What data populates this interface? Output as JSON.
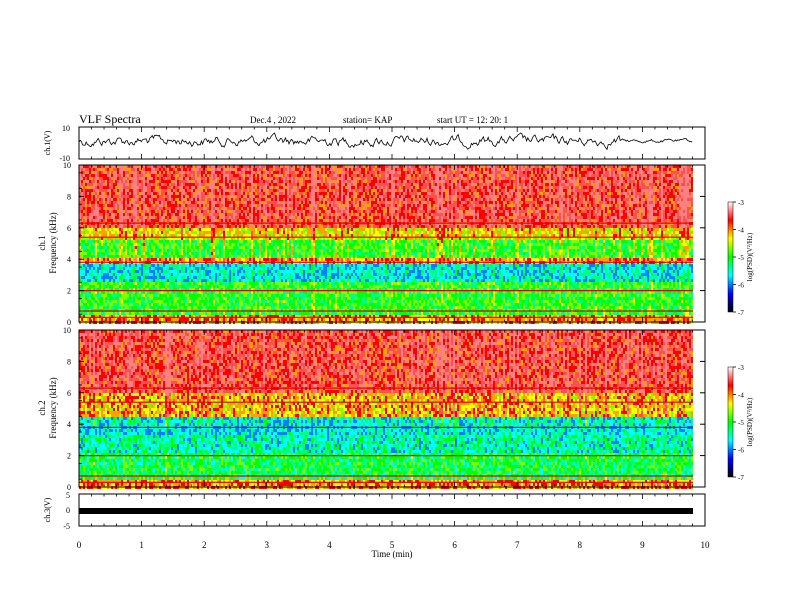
{
  "header": {
    "title": "VLF Spectra",
    "date": "Dec.4 , 2022",
    "station": "station= KAP",
    "start": "start UT = 12: 20: 1"
  },
  "chart_data": [
    {
      "type": "line",
      "name": "waveform-ch1",
      "ylabel": "ch.1(V)",
      "xlim": [
        0,
        10
      ],
      "ylim": [
        -10,
        10
      ],
      "yticks": [
        "10",
        "-10"
      ],
      "series_color": "#000000"
    },
    {
      "type": "heatmap",
      "name": "spectrogram-ch1",
      "ylabel_lines": [
        "ch.1",
        "Frequency (kHz)"
      ],
      "xlim": [
        0,
        10
      ],
      "ylim": [
        0,
        10
      ],
      "yticks": [
        "0",
        "2",
        "4",
        "6",
        "8",
        "10"
      ],
      "colorbar": {
        "label": "log(PSD)(V²/Hz)",
        "range": [
          -7,
          -3
        ],
        "ticks": [
          "-3",
          "-4",
          "-5",
          "-6",
          "-7"
        ],
        "colors": [
          "#000000",
          "#0000ff",
          "#00ffff",
          "#00ff00",
          "#ffff00",
          "#ff0000",
          "#ffffff"
        ]
      }
    },
    {
      "type": "heatmap",
      "name": "spectrogram-ch2",
      "ylabel_lines": [
        "ch.2",
        "Frequency (kHz)"
      ],
      "xlim": [
        0,
        10
      ],
      "ylim": [
        0,
        10
      ],
      "yticks": [
        "0",
        "2",
        "4",
        "6",
        "8",
        "10"
      ],
      "colorbar": {
        "label": "log(PSD)(V²/Hz)",
        "range": [
          -7,
          -3
        ],
        "ticks": [
          "-3",
          "-4",
          "-5",
          "-6",
          "-7"
        ],
        "colors": [
          "#000000",
          "#0000ff",
          "#00ffff",
          "#00ff00",
          "#ffff00",
          "#ff0000",
          "#ffffff"
        ]
      }
    },
    {
      "type": "line",
      "name": "waveform-ch3",
      "ylabel": "ch.3(V)",
      "xlim": [
        0,
        10
      ],
      "ylim": [
        -5,
        5
      ],
      "yticks": [
        "5",
        "0",
        "-5"
      ],
      "series_color": "#000000"
    }
  ],
  "xaxis": {
    "label": "Time (min)",
    "ticks": [
      "0",
      "1",
      "2",
      "3",
      "4",
      "5",
      "6",
      "7",
      "8",
      "9",
      "10"
    ]
  }
}
